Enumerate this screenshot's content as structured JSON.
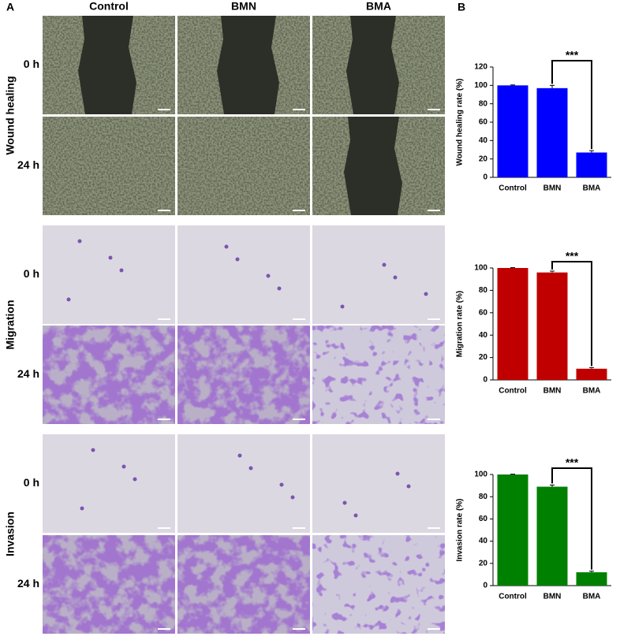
{
  "panel_labels": [
    "A",
    "B"
  ],
  "panel_a": {
    "columns": [
      "Control",
      "BMN",
      "BMA"
    ],
    "groups": [
      {
        "label": "Wound healing",
        "rows": [
          "0 h",
          "24 h"
        ]
      },
      {
        "label": "Migration",
        "rows": [
          "0 h",
          "24 h"
        ]
      },
      {
        "label": "Invasion",
        "rows": [
          "0 h",
          "24 h"
        ]
      }
    ]
  },
  "chart_data": [
    {
      "type": "bar",
      "y_label": "Wound healing rate (%)",
      "categories": [
        "Control",
        "BMN",
        "BMA"
      ],
      "values": [
        100,
        97,
        27
      ],
      "errors": [
        0.5,
        3,
        2
      ],
      "color": "#0000ff",
      "ylim": [
        0,
        120
      ],
      "yticks": [
        0,
        20,
        40,
        60,
        80,
        100,
        120
      ],
      "annotation": "***"
    },
    {
      "type": "bar",
      "y_label": "Migration rate (%)",
      "categories": [
        "Control",
        "BMN",
        "BMA"
      ],
      "values": [
        100,
        96,
        10
      ],
      "errors": [
        0.3,
        1.2,
        1
      ],
      "color": "#c00000",
      "ylim": [
        0,
        100
      ],
      "yticks": [
        0,
        20,
        40,
        60,
        80,
        100
      ],
      "annotation": "***"
    },
    {
      "type": "bar",
      "y_label": "Invasion rate (%)",
      "categories": [
        "Control",
        "BMN",
        "BMA"
      ],
      "values": [
        100,
        89,
        12
      ],
      "errors": [
        0.3,
        1.5,
        1
      ],
      "color": "#008000",
      "ylim": [
        0,
        100
      ],
      "yticks": [
        0,
        20,
        40,
        60,
        80,
        100
      ],
      "annotation": "***"
    }
  ]
}
